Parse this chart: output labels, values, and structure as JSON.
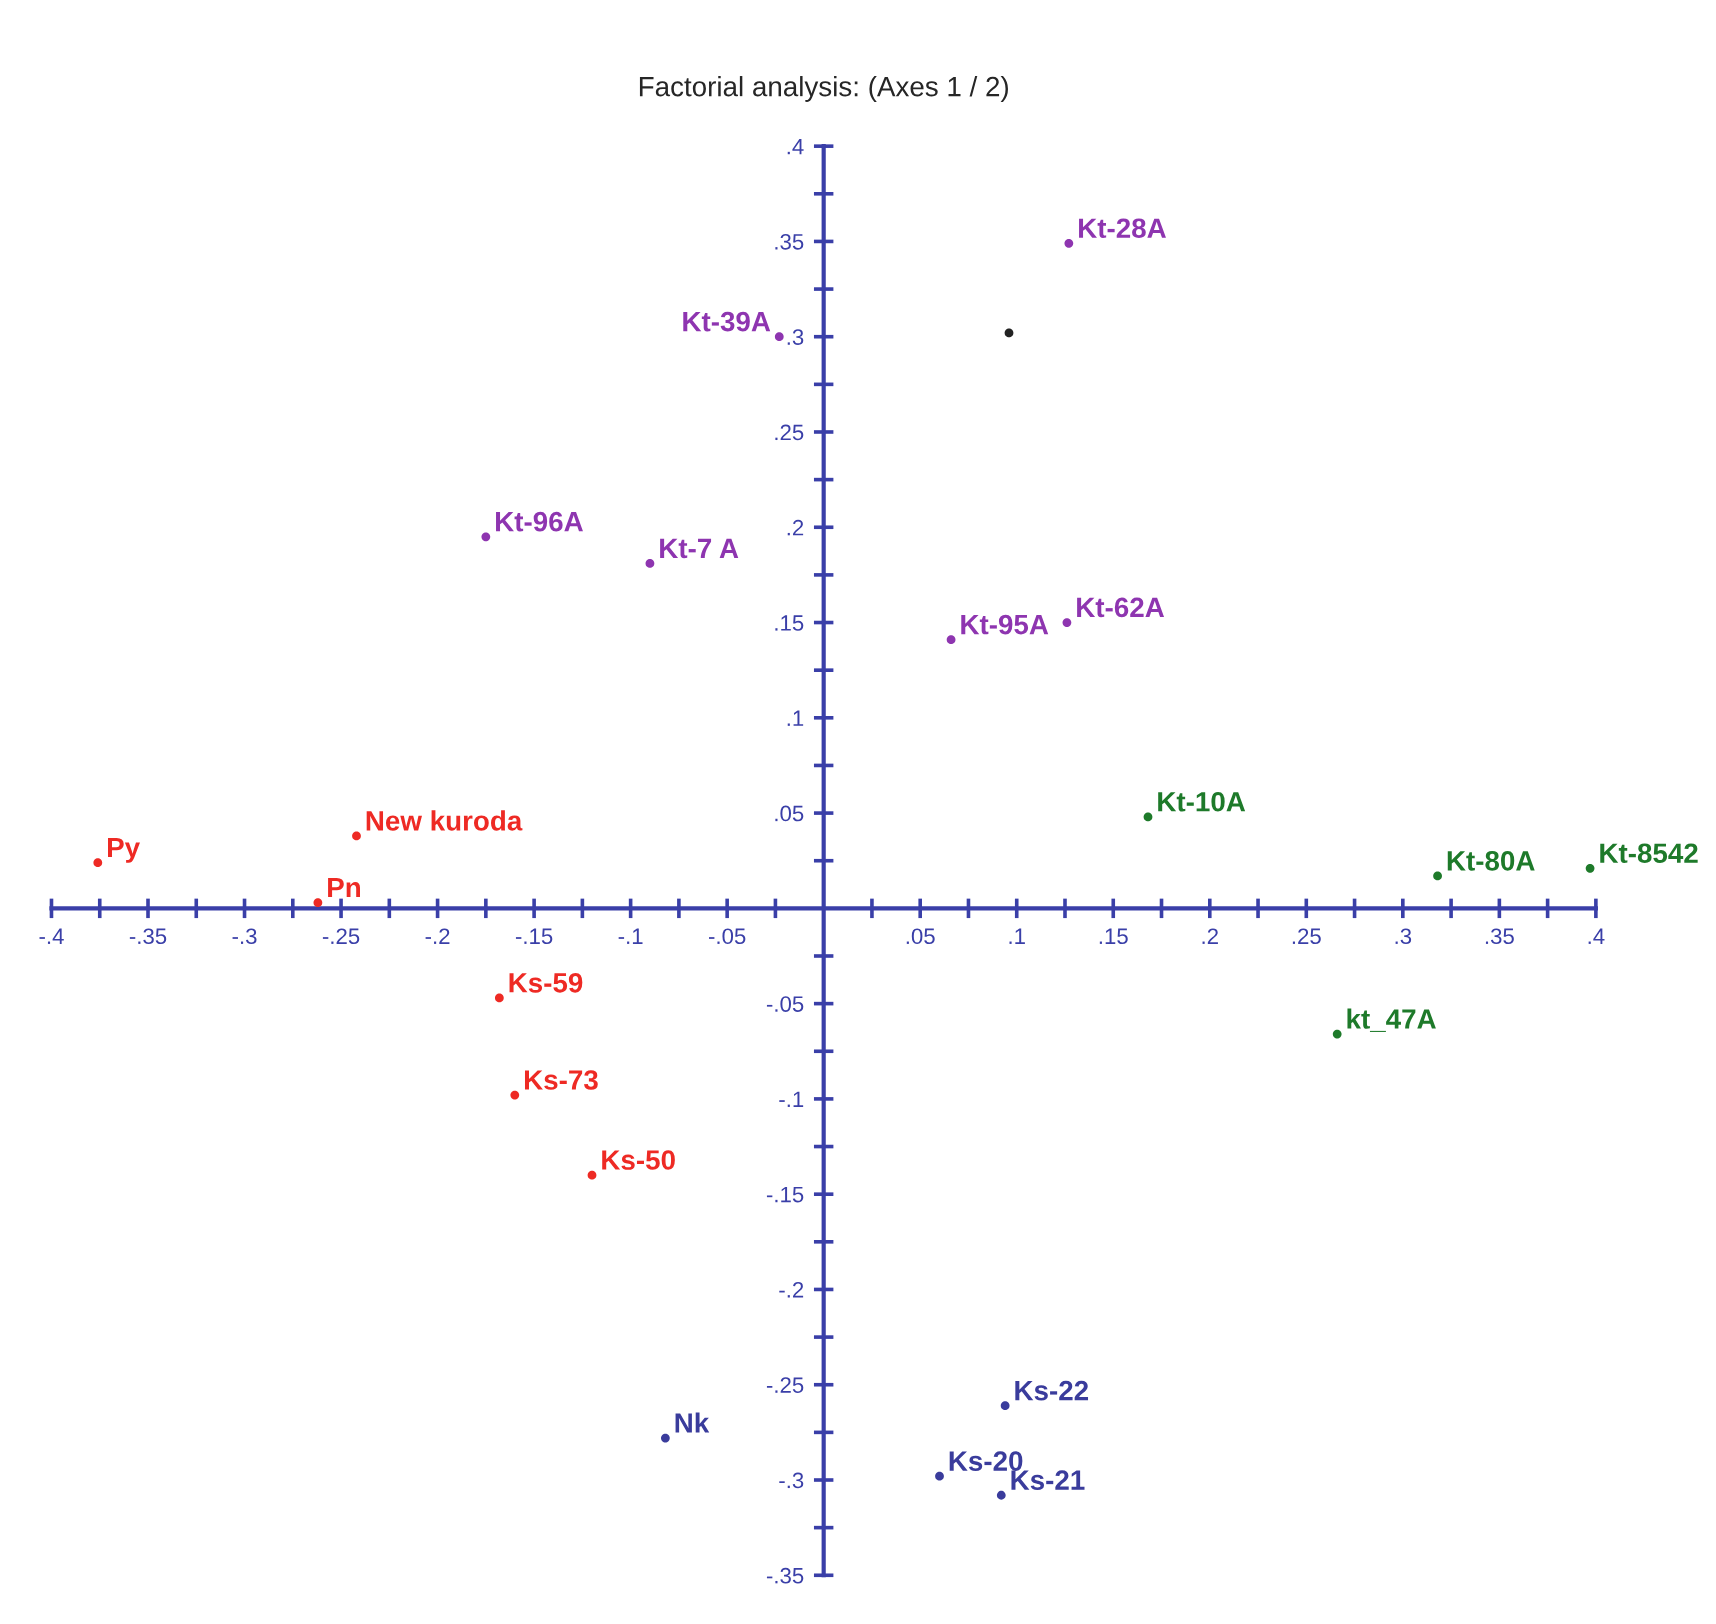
{
  "chart_data": {
    "type": "scatter",
    "title": "Factorial analysis: (Axes 1 / 2)",
    "marker": "circle",
    "grid": false,
    "legend": false,
    "xlim": [
      -0.4,
      0.4
    ],
    "ylim": [
      -0.35,
      0.4
    ],
    "xticks": [
      {
        "value": -0.4,
        "label": "-.4"
      },
      {
        "value": -0.375,
        "label": null
      },
      {
        "value": -0.35,
        "label": "-.35"
      },
      {
        "value": -0.325,
        "label": null
      },
      {
        "value": -0.3,
        "label": "-.3"
      },
      {
        "value": -0.275,
        "label": null
      },
      {
        "value": -0.25,
        "label": "-.25"
      },
      {
        "value": -0.225,
        "label": null
      },
      {
        "value": -0.2,
        "label": "-.2"
      },
      {
        "value": -0.175,
        "label": null
      },
      {
        "value": -0.15,
        "label": "-.15"
      },
      {
        "value": -0.125,
        "label": null
      },
      {
        "value": -0.1,
        "label": "-.1"
      },
      {
        "value": -0.075,
        "label": null
      },
      {
        "value": -0.05,
        "label": "-.05"
      },
      {
        "value": -0.025,
        "label": null
      },
      {
        "value": 0.025,
        "label": null
      },
      {
        "value": 0.05,
        "label": ".05"
      },
      {
        "value": 0.075,
        "label": null
      },
      {
        "value": 0.1,
        "label": ".1"
      },
      {
        "value": 0.125,
        "label": null
      },
      {
        "value": 0.15,
        "label": ".15"
      },
      {
        "value": 0.175,
        "label": null
      },
      {
        "value": 0.2,
        "label": ".2"
      },
      {
        "value": 0.225,
        "label": null
      },
      {
        "value": 0.25,
        "label": ".25"
      },
      {
        "value": 0.275,
        "label": null
      },
      {
        "value": 0.3,
        "label": ".3"
      },
      {
        "value": 0.325,
        "label": null
      },
      {
        "value": 0.35,
        "label": ".35"
      },
      {
        "value": 0.375,
        "label": null
      },
      {
        "value": 0.4,
        "label": ".4"
      }
    ],
    "yticks": [
      {
        "value": -0.35,
        "label": "-.35"
      },
      {
        "value": -0.325,
        "label": null
      },
      {
        "value": -0.3,
        "label": "-.3"
      },
      {
        "value": -0.275,
        "label": null
      },
      {
        "value": -0.25,
        "label": "-.25"
      },
      {
        "value": -0.225,
        "label": null
      },
      {
        "value": -0.2,
        "label": "-.2"
      },
      {
        "value": -0.175,
        "label": null
      },
      {
        "value": -0.15,
        "label": "-.15"
      },
      {
        "value": -0.125,
        "label": null
      },
      {
        "value": -0.1,
        "label": "-.1"
      },
      {
        "value": -0.075,
        "label": null
      },
      {
        "value": -0.05,
        "label": "-.05"
      },
      {
        "value": -0.025,
        "label": null
      },
      {
        "value": 0.025,
        "label": null
      },
      {
        "value": 0.05,
        "label": ".05"
      },
      {
        "value": 0.075,
        "label": null
      },
      {
        "value": 0.1,
        "label": ".1"
      },
      {
        "value": 0.125,
        "label": null
      },
      {
        "value": 0.15,
        "label": ".15"
      },
      {
        "value": 0.175,
        "label": null
      },
      {
        "value": 0.2,
        "label": ".2"
      },
      {
        "value": 0.225,
        "label": null
      },
      {
        "value": 0.25,
        "label": ".25"
      },
      {
        "value": 0.275,
        "label": null
      },
      {
        "value": 0.3,
        "label": ".3"
      },
      {
        "value": 0.325,
        "label": null
      },
      {
        "value": 0.35,
        "label": ".35"
      },
      {
        "value": 0.375,
        "label": null
      },
      {
        "value": 0.4,
        "label": ".4"
      }
    ],
    "series": [
      {
        "name": "Kt-28A",
        "color": "#8e35b0",
        "x": [
          0.127
        ],
        "values": [
          0.349
        ]
      },
      {
        "color": "#222222",
        "x": [
          0.096
        ],
        "values": [
          0.302
        ]
      },
      {
        "name": "Kt-39A",
        "color": "#8e35b0",
        "x": [
          -0.023
        ],
        "values": [
          0.3
        ]
      },
      {
        "name": "Kt-96A",
        "color": "#8e35b0",
        "x": [
          -0.175
        ],
        "values": [
          0.195
        ]
      },
      {
        "name": "Kt-7 A",
        "color": "#8e35b0",
        "x": [
          -0.09
        ],
        "values": [
          0.181
        ]
      },
      {
        "name": "Kt-95A",
        "color": "#8e35b0",
        "x": [
          0.066
        ],
        "values": [
          0.141
        ]
      },
      {
        "name": "Kt-62A",
        "color": "#8e35b0",
        "x": [
          0.126
        ],
        "values": [
          0.15
        ]
      },
      {
        "name": "New kuroda",
        "color": "#ee2a24",
        "x": [
          -0.242
        ],
        "values": [
          0.038
        ]
      },
      {
        "name": "Py",
        "color": "#ee2a24",
        "x": [
          -0.376
        ],
        "values": [
          0.024
        ]
      },
      {
        "name": "Pn",
        "color": "#ee2a24",
        "x": [
          -0.262
        ],
        "values": [
          0.003
        ]
      },
      {
        "name": "Kt-10A",
        "color": "#1e7a2a",
        "x": [
          0.168
        ],
        "values": [
          0.048
        ]
      },
      {
        "name": "Kt-80A",
        "color": "#1e7a2a",
        "x": [
          0.318
        ],
        "values": [
          0.017
        ]
      },
      {
        "name": "Kt-8542",
        "color": "#1e7a2a",
        "x": [
          0.397
        ],
        "values": [
          0.021
        ]
      },
      {
        "name": "kt_47A",
        "color": "#1e7a2a",
        "x": [
          0.266
        ],
        "values": [
          -0.066
        ]
      },
      {
        "name": "Ks-59",
        "color": "#ee2a24",
        "x": [
          -0.168
        ],
        "values": [
          -0.047
        ]
      },
      {
        "name": "Ks-73",
        "color": "#ee2a24",
        "x": [
          -0.16
        ],
        "values": [
          -0.098
        ]
      },
      {
        "name": "Ks-50",
        "color": "#ee2a24",
        "x": [
          -0.12
        ],
        "values": [
          -0.14
        ]
      },
      {
        "name": "Nk",
        "color": "#3a3c9c",
        "x": [
          -0.082
        ],
        "values": [
          -0.278
        ]
      },
      {
        "name": "Ks-22",
        "color": "#3a3c9c",
        "x": [
          0.094
        ],
        "values": [
          -0.261
        ]
      },
      {
        "name": "Ks-20",
        "color": "#3a3c9c",
        "x": [
          0.06
        ],
        "values": [
          -0.298
        ]
      },
      {
        "name": "Ks-21",
        "color": "#3a3c9c",
        "x": [
          0.092
        ],
        "values": [
          -0.308
        ]
      }
    ]
  }
}
